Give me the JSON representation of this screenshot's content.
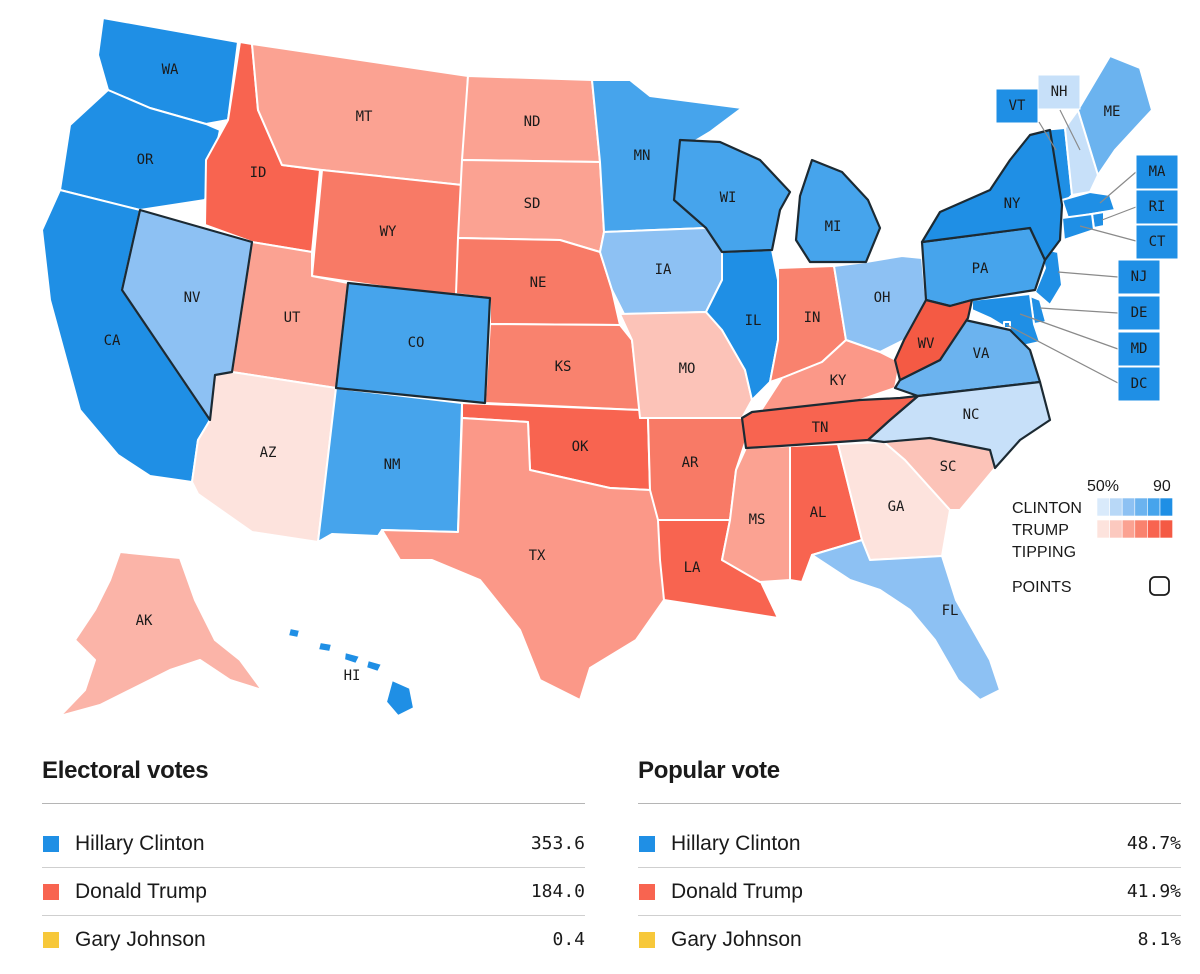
{
  "map": {
    "states": [
      {
        "abbr": "WA",
        "fill": "#1f8fe5"
      },
      {
        "abbr": "OR",
        "fill": "#1f8fe5"
      },
      {
        "abbr": "CA",
        "fill": "#1f8fe5"
      },
      {
        "abbr": "NV",
        "fill": "#8dc1f3"
      },
      {
        "abbr": "ID",
        "fill": "#f86450"
      },
      {
        "abbr": "MT",
        "fill": "#fba292"
      },
      {
        "abbr": "WY",
        "fill": "#f87a66"
      },
      {
        "abbr": "UT",
        "fill": "#fba292"
      },
      {
        "abbr": "AZ",
        "fill": "#fde3dd"
      },
      {
        "abbr": "CO",
        "fill": "#46a4ec"
      },
      {
        "abbr": "NM",
        "fill": "#46a4ec"
      },
      {
        "abbr": "ND",
        "fill": "#fba292"
      },
      {
        "abbr": "SD",
        "fill": "#fba292"
      },
      {
        "abbr": "NE",
        "fill": "#f87a66"
      },
      {
        "abbr": "KS",
        "fill": "#f9826e"
      },
      {
        "abbr": "OK",
        "fill": "#f86450"
      },
      {
        "abbr": "TX",
        "fill": "#fb9888"
      },
      {
        "abbr": "MN",
        "fill": "#46a4ec"
      },
      {
        "abbr": "IA",
        "fill": "#8dc1f3"
      },
      {
        "abbr": "MO",
        "fill": "#fcc3b8"
      },
      {
        "abbr": "AR",
        "fill": "#f87a66"
      },
      {
        "abbr": "LA",
        "fill": "#f86450"
      },
      {
        "abbr": "WI",
        "fill": "#46a4ec"
      },
      {
        "abbr": "IL",
        "fill": "#1f8fe5"
      },
      {
        "abbr": "MI",
        "fill": "#46a4ec"
      },
      {
        "abbr": "IN",
        "fill": "#f9826e"
      },
      {
        "abbr": "OH",
        "fill": "#8dc1f3"
      },
      {
        "abbr": "KY",
        "fill": "#fb9888"
      },
      {
        "abbr": "TN",
        "fill": "#f86450"
      },
      {
        "abbr": "MS",
        "fill": "#fba292"
      },
      {
        "abbr": "AL",
        "fill": "#f86450"
      },
      {
        "abbr": "GA",
        "fill": "#fde3dd"
      },
      {
        "abbr": "FL",
        "fill": "#8dc1f3"
      },
      {
        "abbr": "SC",
        "fill": "#fcc3b8"
      },
      {
        "abbr": "NC",
        "fill": "#c7e0f9"
      },
      {
        "abbr": "VA",
        "fill": "#6bb3ef"
      },
      {
        "abbr": "WV",
        "fill": "#f45a44"
      },
      {
        "abbr": "PA",
        "fill": "#46a4ec"
      },
      {
        "abbr": "NY",
        "fill": "#1f8fe5"
      },
      {
        "abbr": "VT",
        "fill": "#1f8fe5"
      },
      {
        "abbr": "NH",
        "fill": "#c7e0f9"
      },
      {
        "abbr": "ME",
        "fill": "#6bb3ef"
      },
      {
        "abbr": "MA",
        "fill": "#1f8fe5"
      },
      {
        "abbr": "RI",
        "fill": "#1f8fe5"
      },
      {
        "abbr": "CT",
        "fill": "#1f8fe5"
      },
      {
        "abbr": "NJ",
        "fill": "#1f8fe5"
      },
      {
        "abbr": "DE",
        "fill": "#1f8fe5"
      },
      {
        "abbr": "MD",
        "fill": "#1f8fe5"
      },
      {
        "abbr": "DC",
        "fill": "#1f8fe5"
      },
      {
        "abbr": "AK",
        "fill": "#fbb4a8"
      },
      {
        "abbr": "HI",
        "fill": "#1f8fe5"
      }
    ],
    "tipping_points": [
      "NV",
      "CO",
      "WI",
      "MI",
      "PA",
      "NY",
      "VA",
      "NC",
      "WV",
      "TN"
    ]
  },
  "legend": {
    "scale_low": "50%",
    "scale_high": "90",
    "clinton_label": "CLINTON",
    "trump_label": "TRUMP",
    "tipping_label_1": "TIPPING",
    "tipping_label_2": "POINTS",
    "clinton_shades": [
      "#d9eafb",
      "#b8d8f7",
      "#8dc1f3",
      "#6bb3ef",
      "#46a4ec",
      "#1f8fe5"
    ],
    "trump_shades": [
      "#fde3dd",
      "#fcc9bf",
      "#fba292",
      "#f9826e",
      "#f86450",
      "#f45a44"
    ]
  },
  "electoral": {
    "title": "Electoral votes",
    "rows": [
      {
        "name": "Hillary Clinton",
        "value": "353.6",
        "color": "#1f8fe5"
      },
      {
        "name": "Donald Trump",
        "value": "184.0",
        "color": "#f86450"
      },
      {
        "name": "Gary Johnson",
        "value": "0.4",
        "color": "#f7c83a"
      }
    ]
  },
  "popular": {
    "title": "Popular vote",
    "rows": [
      {
        "name": "Hillary Clinton",
        "value": "48.7%",
        "color": "#1f8fe5"
      },
      {
        "name": "Donald Trump",
        "value": "41.9%",
        "color": "#f86450"
      },
      {
        "name": "Gary Johnson",
        "value": "8.1%",
        "color": "#f7c83a"
      }
    ]
  }
}
